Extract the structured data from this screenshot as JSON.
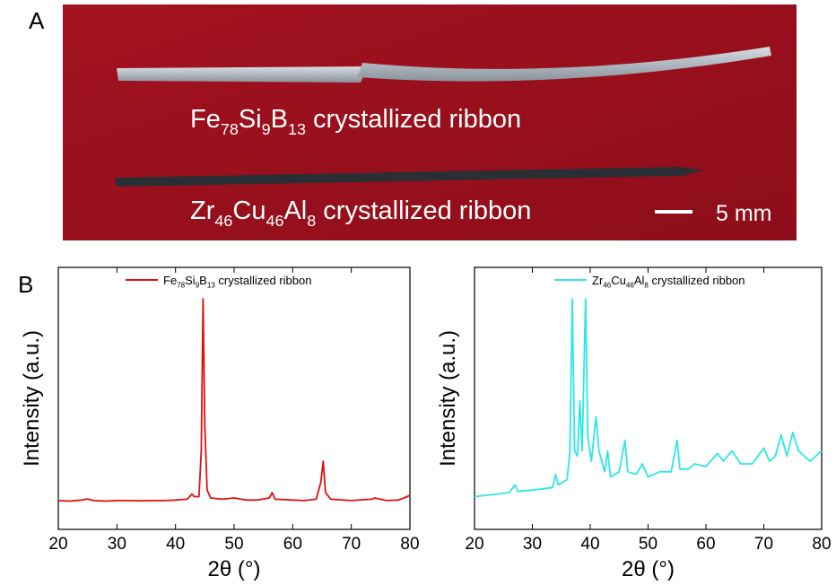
{
  "panel_a": {
    "label": "A",
    "captions": [
      [
        {
          "text": "Fe"
        },
        {
          "sub": "78"
        },
        {
          "text": "Si"
        },
        {
          "sub": "9"
        },
        {
          "text": "B"
        },
        {
          "sub": "13"
        },
        {
          "text": " crystallized ribbon"
        }
      ],
      [
        {
          "text": "Zr"
        },
        {
          "sub": "46"
        },
        {
          "text": "Cu"
        },
        {
          "sub": "46"
        },
        {
          "text": "Al"
        },
        {
          "sub": "8"
        },
        {
          "text": " crystallized ribbon"
        }
      ]
    ],
    "scale_bar": "5 mm"
  },
  "panel_b": {
    "label": "B"
  },
  "chart_data": [
    {
      "type": "line",
      "xlabel": "2θ (°)",
      "ylabel": "Intensity (a.u.)",
      "xlim": [
        20,
        80
      ],
      "xticks": [
        20,
        30,
        40,
        50,
        60,
        70,
        80
      ],
      "ylim": [
        0,
        100
      ],
      "series": [
        {
          "legend": [
            {
              "text": "Fe"
            },
            {
              "sub": "78"
            },
            {
              "text": "Si"
            },
            {
              "sub": "9"
            },
            {
              "text": "B"
            },
            {
              "sub": "13"
            },
            {
              "text": " crystallized ribbon"
            }
          ],
          "color": "#e01010",
          "x": [
            20,
            22,
            24,
            25,
            26,
            28,
            30,
            32,
            34,
            36,
            38,
            40,
            42,
            42.8,
            43.2,
            44,
            44.4,
            44.7,
            45,
            45.4,
            46,
            48,
            50,
            52,
            54,
            56,
            56.5,
            57,
            60,
            62,
            64,
            64.8,
            65.2,
            65.6,
            66.5,
            70,
            73.5,
            74,
            76,
            78,
            79,
            80
          ],
          "values": [
            11,
            10.8,
            11.2,
            11.6,
            11,
            10.8,
            11,
            11,
            10.9,
            11,
            11,
            11.2,
            11.5,
            13.5,
            12.5,
            12.5,
            30,
            88,
            40,
            15,
            12,
            11.5,
            12,
            11.2,
            11.2,
            12,
            14,
            11.5,
            11.2,
            11,
            11.5,
            18,
            26,
            14,
            11.5,
            11,
            11.5,
            12,
            11,
            11.2,
            12,
            13
          ]
        }
      ]
    },
    {
      "type": "line",
      "xlabel": "2θ (°)",
      "ylabel": "Intensity (a.u.)",
      "xlim": [
        20,
        80
      ],
      "xticks": [
        20,
        30,
        40,
        50,
        60,
        70,
        80
      ],
      "ylim": [
        0,
        100
      ],
      "series": [
        {
          "legend": [
            {
              "text": "Zr"
            },
            {
              "sub": "46"
            },
            {
              "text": "Cu"
            },
            {
              "sub": "46"
            },
            {
              "text": "Al"
            },
            {
              "sub": "8"
            },
            {
              "text": " crystallized ribbon"
            }
          ],
          "color": "#2ee6e6",
          "x": [
            20,
            22,
            24,
            26,
            27,
            27.5,
            30,
            32,
            33.5,
            34,
            34.5,
            36,
            36.5,
            36.9,
            37.3,
            37.8,
            38.2,
            38.6,
            39.2,
            39.6,
            40.2,
            41,
            41.5,
            42.5,
            43,
            43.5,
            45,
            46,
            46.5,
            48,
            49,
            50,
            52,
            54,
            55,
            55.5,
            57,
            58,
            60,
            62,
            63,
            64.5,
            66,
            68,
            70,
            71,
            72,
            73,
            74,
            75,
            76,
            78,
            80
          ],
          "values": [
            12.5,
            13,
            13.5,
            14,
            17,
            14.5,
            15,
            15.5,
            16,
            21,
            17,
            19,
            30,
            88,
            30,
            28,
            49,
            30,
            88,
            35,
            26,
            43,
            30,
            22,
            30,
            20,
            22,
            34,
            22,
            21,
            25,
            20,
            22,
            22,
            34,
            23,
            23,
            25,
            24,
            29,
            26,
            30,
            25,
            25,
            31,
            26,
            28,
            36,
            28,
            37,
            30,
            26,
            30
          ]
        }
      ]
    }
  ]
}
